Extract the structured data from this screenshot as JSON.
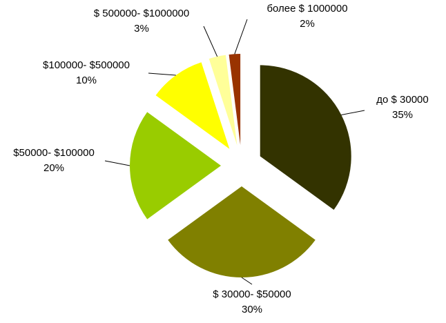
{
  "chart_data": {
    "type": "pie",
    "categories": [
      "до $ 30000",
      "$ 30000- $50000",
      "$50000- $100000",
      "$100000- $500000",
      "$ 500000- $1000000",
      "более $ 1000000"
    ],
    "values": [
      35,
      30,
      20,
      10,
      3,
      2
    ],
    "value_labels": [
      "35%",
      "30%",
      "20%",
      "10%",
      "3%",
      "2%"
    ],
    "colors": [
      "#333300",
      "#808000",
      "#99cc00",
      "#ffff00",
      "#ffff99",
      "#993300"
    ]
  }
}
